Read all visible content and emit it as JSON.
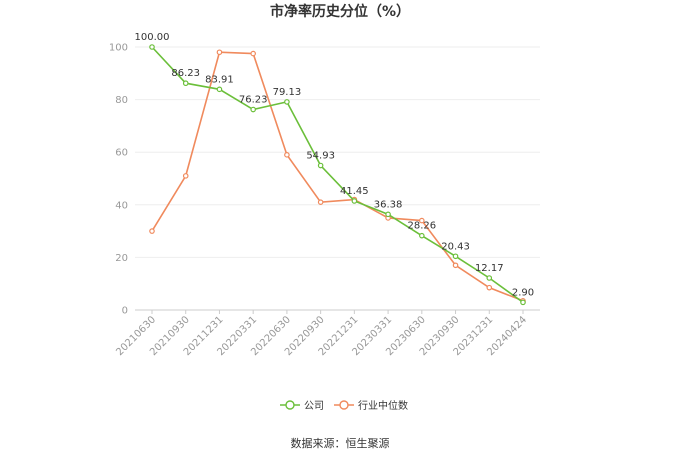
{
  "chart_data": {
    "type": "line",
    "title": "市净率历史分位（%）",
    "categories": [
      "20210630",
      "20210930",
      "20211231",
      "20220331",
      "20220630",
      "20220930",
      "20221231",
      "20230331",
      "20230630",
      "20230930",
      "20231231",
      "20240424"
    ],
    "ylim": [
      0,
      100
    ],
    "yticks": [
      0,
      20,
      40,
      60,
      80,
      100
    ],
    "grid": true,
    "legend_position": "bottom",
    "series": [
      {
        "name": "公司",
        "color": "#6bbf3a",
        "values": [
          100.0,
          86.23,
          83.91,
          76.23,
          79.13,
          54.93,
          41.45,
          36.38,
          28.26,
          20.43,
          12.17,
          2.9
        ],
        "labels": [
          "100.00",
          "86.23",
          "83.91",
          "76.23",
          "79.13",
          "54.93",
          "41.45",
          "36.38",
          "28.26",
          "20.43",
          "12.17",
          "2.90"
        ]
      },
      {
        "name": "行业中位数",
        "color": "#f08a5d",
        "values": [
          30.0,
          51.0,
          98.0,
          97.5,
          59.0,
          41.0,
          42.0,
          35.0,
          34.0,
          17.0,
          8.5,
          3.5
        ]
      }
    ]
  },
  "source": "数据来源：恒生聚源"
}
